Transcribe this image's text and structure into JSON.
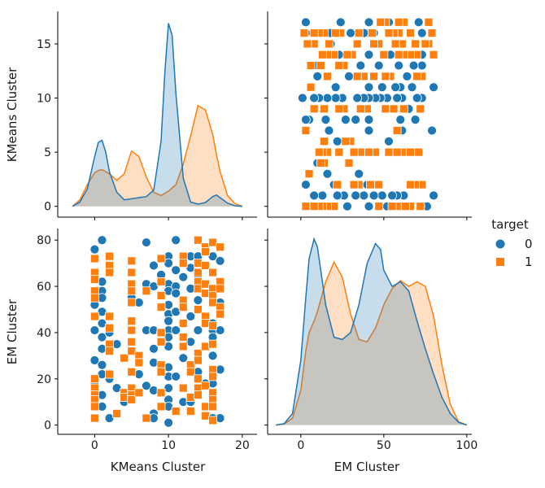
{
  "chart_data": {
    "type": "pairplot",
    "variables": [
      "KMeans Cluster",
      "EM Cluster"
    ],
    "hue": "target",
    "legend": {
      "title": "target",
      "placement": "right",
      "entries": [
        {
          "label": "0",
          "marker": "circle",
          "color": "#1f77b4"
        },
        {
          "label": "1",
          "marker": "square",
          "color": "#ff7f0e"
        }
      ]
    },
    "axes": {
      "KMeans Cluster": {
        "label": "KMeans Cluster",
        "range": [
          -5,
          22
        ],
        "ticks": [
          0,
          10,
          20
        ],
        "diag_ticks": [
          0,
          5,
          10,
          15
        ]
      },
      "EM Cluster": {
        "label": "EM Cluster",
        "range": [
          -20,
          103
        ],
        "ticks": [
          0,
          50,
          100
        ],
        "y_ticks": [
          0,
          20,
          40,
          60,
          80
        ]
      }
    },
    "density": {
      "KMeans Cluster": {
        "x": [
          -3,
          -2,
          -1,
          0,
          0.5,
          1,
          1.5,
          2,
          3,
          4,
          5,
          6,
          7,
          8,
          9,
          9.5,
          10,
          10.5,
          11,
          12,
          13,
          14,
          15,
          16,
          16.5,
          17,
          18,
          19,
          20
        ],
        "0": [
          0,
          0.4,
          1.6,
          4.6,
          5.9,
          6.1,
          5.0,
          3.2,
          1.3,
          0.6,
          0.7,
          0.8,
          0.9,
          1.5,
          6.0,
          12.3,
          16.9,
          15.8,
          10.5,
          2.6,
          0.4,
          0.2,
          0.35,
          0.9,
          1.05,
          0.8,
          0.3,
          0.05,
          0
        ],
        "1": [
          0,
          0.6,
          2.0,
          3.1,
          3.3,
          3.4,
          3.2,
          3.0,
          2.4,
          3.0,
          5.1,
          4.6,
          2.7,
          1.3,
          1.0,
          1.2,
          1.4,
          1.7,
          2.0,
          3.9,
          6.5,
          9.3,
          8.9,
          6.6,
          4.8,
          3.2,
          1.0,
          0.25,
          0
        ]
      },
      "EM Cluster": {
        "x": [
          -15,
          -10,
          -5,
          0,
          3,
          5,
          8,
          10,
          15,
          20,
          25,
          30,
          35,
          40,
          45,
          48,
          50,
          55,
          60,
          65,
          70,
          75,
          80,
          85,
          90,
          95,
          100
        ],
        "0": [
          0,
          0.6,
          5,
          28,
          55,
          72,
          80.5,
          77,
          52,
          38,
          37,
          40,
          52,
          70,
          78.5,
          76,
          67,
          60,
          62,
          58,
          45,
          33,
          22,
          12,
          5,
          1.2,
          0
        ],
        "1": [
          0,
          0.5,
          3,
          15,
          32,
          40,
          45,
          49,
          62,
          70.5,
          64,
          48,
          37,
          36,
          42,
          48,
          52,
          59,
          62.5,
          60,
          62,
          60,
          47,
          26,
          9,
          1.5,
          0
        ]
      }
    },
    "scatter": {
      "target_0": [
        [
          0,
          76
        ],
        [
          0,
          72
        ],
        [
          1,
          80
        ],
        [
          1,
          62
        ],
        [
          1,
          58
        ],
        [
          1,
          55
        ],
        [
          1,
          49
        ],
        [
          0,
          52
        ],
        [
          1,
          44
        ],
        [
          0,
          41
        ],
        [
          1,
          38
        ],
        [
          2,
          40
        ],
        [
          1,
          33
        ],
        [
          0,
          28
        ],
        [
          1,
          26
        ],
        [
          1,
          22
        ],
        [
          0,
          18
        ],
        [
          1,
          13
        ],
        [
          1,
          8
        ],
        [
          2,
          3
        ],
        [
          3,
          16
        ],
        [
          2,
          20
        ],
        [
          4,
          10
        ],
        [
          3,
          35
        ],
        [
          5,
          55
        ],
        [
          5,
          61
        ],
        [
          6,
          53
        ],
        [
          6,
          22
        ],
        [
          7,
          61
        ],
        [
          7,
          79
        ],
        [
          7,
          41
        ],
        [
          7,
          17
        ],
        [
          8,
          69
        ],
        [
          8,
          60
        ],
        [
          8,
          41
        ],
        [
          8,
          33
        ],
        [
          8,
          27
        ],
        [
          8,
          15
        ],
        [
          8,
          5
        ],
        [
          8,
          3
        ],
        [
          10,
          73
        ],
        [
          10,
          70
        ],
        [
          10,
          61
        ],
        [
          10,
          58
        ],
        [
          10,
          52
        ],
        [
          10,
          48
        ],
        [
          10,
          45
        ],
        [
          10,
          41
        ],
        [
          10,
          38
        ],
        [
          10,
          34
        ],
        [
          10,
          25
        ],
        [
          10,
          21
        ],
        [
          10,
          16
        ],
        [
          10,
          11
        ],
        [
          10,
          8
        ],
        [
          10,
          1
        ],
        [
          11,
          80
        ],
        [
          11,
          67
        ],
        [
          11,
          60
        ],
        [
          11,
          57
        ],
        [
          11,
          49
        ],
        [
          11,
          41
        ],
        [
          11,
          21
        ],
        [
          12,
          64
        ],
        [
          12,
          10
        ],
        [
          13,
          73
        ],
        [
          13,
          68
        ],
        [
          13,
          59
        ],
        [
          13,
          47
        ],
        [
          13,
          36
        ],
        [
          13,
          10
        ],
        [
          14,
          73
        ],
        [
          14,
          64
        ],
        [
          14,
          54
        ],
        [
          14,
          41
        ],
        [
          14,
          23
        ],
        [
          15,
          18
        ],
        [
          16,
          73
        ],
        [
          16,
          44
        ],
        [
          16,
          41
        ],
        [
          16,
          38
        ],
        [
          16,
          30
        ],
        [
          16,
          18
        ],
        [
          16,
          3
        ],
        [
          17,
          71
        ],
        [
          17,
          53
        ],
        [
          17,
          50
        ],
        [
          17,
          41
        ],
        [
          17,
          24
        ],
        [
          17,
          3
        ],
        [
          9,
          65
        ],
        [
          9,
          40
        ],
        [
          12,
          29
        ]
      ],
      "target_1": [
        [
          0,
          72
        ],
        [
          0,
          66
        ],
        [
          0,
          63
        ],
        [
          0,
          58
        ],
        [
          0,
          55
        ],
        [
          0,
          47
        ],
        [
          0,
          20
        ],
        [
          0,
          16
        ],
        [
          0,
          13
        ],
        [
          0,
          11
        ],
        [
          0,
          8
        ],
        [
          0,
          3
        ],
        [
          2,
          73
        ],
        [
          2,
          69
        ],
        [
          2,
          66
        ],
        [
          2,
          47
        ],
        [
          2,
          42
        ],
        [
          2,
          35
        ],
        [
          2,
          32
        ],
        [
          2,
          22
        ],
        [
          3,
          5
        ],
        [
          4,
          29
        ],
        [
          4,
          14
        ],
        [
          4,
          12
        ],
        [
          5,
          71
        ],
        [
          5,
          66
        ],
        [
          5,
          61
        ],
        [
          5,
          58
        ],
        [
          5,
          53
        ],
        [
          5,
          45
        ],
        [
          5,
          41
        ],
        [
          5,
          36
        ],
        [
          5,
          32
        ],
        [
          5,
          23
        ],
        [
          5,
          16
        ],
        [
          5,
          13
        ],
        [
          5,
          11
        ],
        [
          6,
          30
        ],
        [
          6,
          27
        ],
        [
          6,
          14
        ],
        [
          7,
          58
        ],
        [
          7,
          3
        ],
        [
          9,
          72
        ],
        [
          9,
          62
        ],
        [
          9,
          56
        ],
        [
          9,
          51
        ],
        [
          9,
          40
        ],
        [
          9,
          36
        ],
        [
          9,
          26
        ],
        [
          9,
          23
        ],
        [
          9,
          14
        ],
        [
          9,
          8
        ],
        [
          11,
          6
        ],
        [
          12,
          73
        ],
        [
          12,
          70
        ],
        [
          12,
          54
        ],
        [
          12,
          51
        ],
        [
          12,
          44
        ],
        [
          12,
          38
        ],
        [
          12,
          34
        ],
        [
          12,
          16
        ],
        [
          13,
          26
        ],
        [
          13,
          23
        ],
        [
          13,
          12
        ],
        [
          13,
          6
        ],
        [
          14,
          80
        ],
        [
          14,
          70
        ],
        [
          14,
          66
        ],
        [
          14,
          62
        ],
        [
          14,
          59
        ],
        [
          14,
          50
        ],
        [
          14,
          31
        ],
        [
          14,
          28
        ],
        [
          14,
          20
        ],
        [
          14,
          16
        ],
        [
          14,
          13
        ],
        [
          15,
          77
        ],
        [
          15,
          75
        ],
        [
          15,
          69
        ],
        [
          15,
          61
        ],
        [
          15,
          57
        ],
        [
          15,
          47
        ],
        [
          15,
          44
        ],
        [
          15,
          34
        ],
        [
          15,
          17
        ],
        [
          15,
          8
        ],
        [
          15,
          4
        ],
        [
          16,
          79
        ],
        [
          16,
          66
        ],
        [
          16,
          59
        ],
        [
          16,
          56
        ],
        [
          16,
          53
        ],
        [
          16,
          43
        ],
        [
          16,
          35
        ],
        [
          16,
          24
        ],
        [
          16,
          21
        ],
        [
          16,
          14
        ],
        [
          16,
          11
        ],
        [
          16,
          8
        ],
        [
          16,
          2
        ],
        [
          17,
          77
        ],
        [
          17,
          62
        ],
        [
          17,
          59
        ],
        [
          17,
          51
        ],
        [
          17,
          48
        ]
      ]
    }
  }
}
